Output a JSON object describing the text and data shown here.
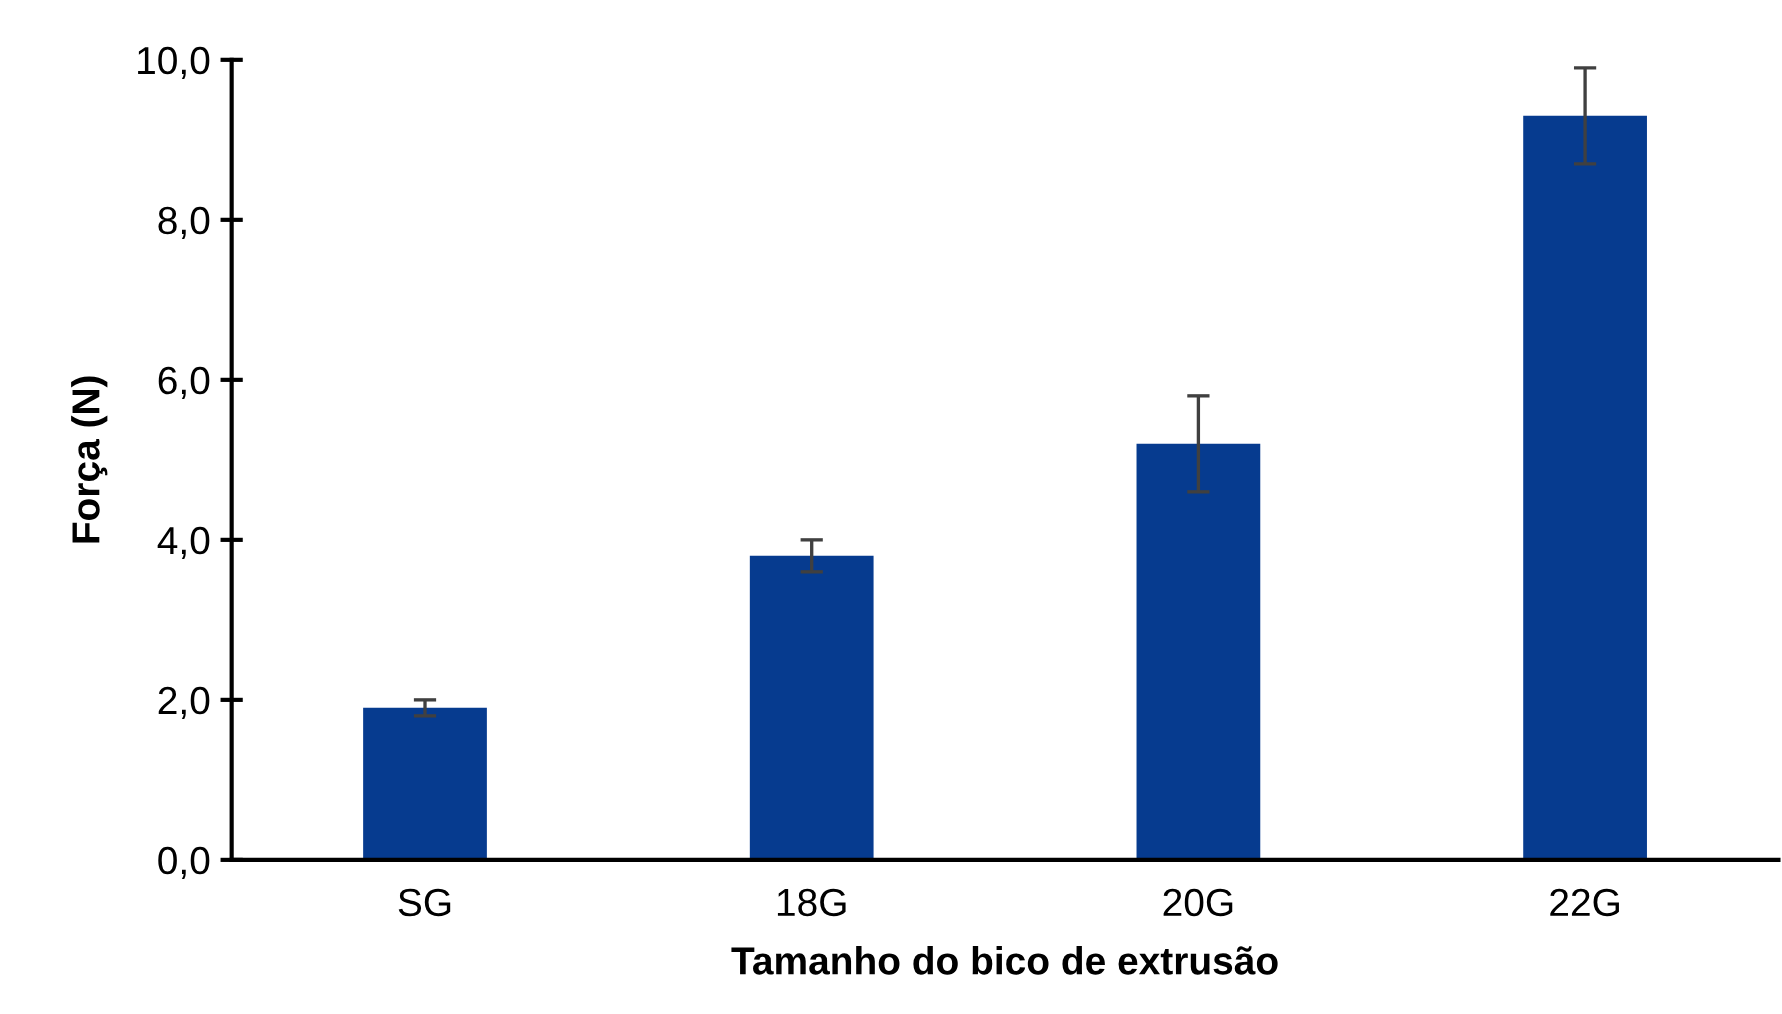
{
  "chart_data": {
    "type": "bar",
    "xlabel": "Tamanho do bico de extrusão",
    "ylabel": "Força (N)",
    "categories": [
      "SG",
      "18G",
      "20G",
      "22G"
    ],
    "values": [
      1.9,
      3.8,
      5.2,
      9.3
    ],
    "errors": [
      0.1,
      0.2,
      0.6,
      0.6
    ],
    "color": "#063b8f",
    "ylim": [
      0,
      10
    ],
    "yticks": [
      {
        "value": 0,
        "label": "0,0"
      },
      {
        "value": 2,
        "label": "2,0"
      },
      {
        "value": 4,
        "label": "4,0"
      },
      {
        "value": 6,
        "label": "6,0"
      },
      {
        "value": 8,
        "label": "8,0"
      },
      {
        "value": 10,
        "label": "10,0"
      }
    ],
    "grid": false,
    "legend": false
  }
}
